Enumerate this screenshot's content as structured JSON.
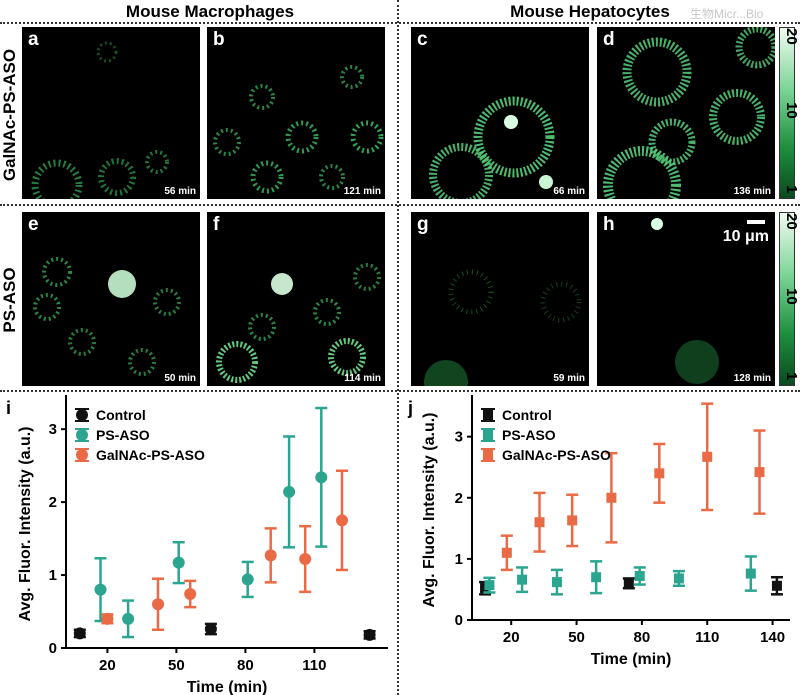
{
  "headers": {
    "left": "Mouse Macrophages",
    "right": "Mouse Hepatocytes"
  },
  "watermark": "生物Micr...Bio",
  "rows": {
    "top": "GalNAc-PS-ASO",
    "bottom": "PS-ASO"
  },
  "panels": [
    {
      "letter": "a",
      "time": "56 min"
    },
    {
      "letter": "b",
      "time": "121 min"
    },
    {
      "letter": "c",
      "time": "66 min"
    },
    {
      "letter": "d",
      "time": "136 min"
    },
    {
      "letter": "e",
      "time": "50 min"
    },
    {
      "letter": "f",
      "time": "114 min"
    },
    {
      "letter": "g",
      "time": "59 min"
    },
    {
      "letter": "h",
      "time": "128 min"
    }
  ],
  "colorbar": {
    "max": "20",
    "mid": "10",
    "min": "1"
  },
  "scalebar": "10 μm",
  "colors": {
    "control": "#111111",
    "ps_aso": "#2ba58f",
    "galnac": "#ea6a45",
    "cell_green": "#3fbf62"
  },
  "chart_data": [
    {
      "panel": "i",
      "type": "scatter",
      "xlabel": "Time (min)",
      "ylabel": "Avg. Fluor. Intensity (a.u.)",
      "xticks": [
        20,
        50,
        80,
        110
      ],
      "yticks": [
        0,
        1,
        2,
        3
      ],
      "xlim": [
        2,
        142
      ],
      "ylim": [
        0,
        3.4
      ],
      "marker": "circle",
      "series": [
        {
          "name": "Control",
          "points": [
            {
              "x": 8,
              "y": 0.2,
              "err": 0.05
            },
            {
              "x": 65,
              "y": 0.26,
              "err": 0.07
            },
            {
              "x": 134,
              "y": 0.18,
              "err": 0.05
            }
          ]
        },
        {
          "name": "PS-ASO",
          "points": [
            {
              "x": 17,
              "y": 0.8,
              "err": 0.43
            },
            {
              "x": 29,
              "y": 0.4,
              "err": 0.25
            },
            {
              "x": 51,
              "y": 1.17,
              "err": 0.28
            },
            {
              "x": 81,
              "y": 0.94,
              "err": 0.24
            },
            {
              "x": 99,
              "y": 2.14,
              "err": 0.76
            },
            {
              "x": 113,
              "y": 2.34,
              "err": 0.95
            }
          ]
        },
        {
          "name": "GalNAc-PS-ASO",
          "points": [
            {
              "x": 20,
              "y": 0.4,
              "err": 0.06
            },
            {
              "x": 42,
              "y": 0.6,
              "err": 0.35
            },
            {
              "x": 56,
              "y": 0.74,
              "err": 0.18
            },
            {
              "x": 91,
              "y": 1.27,
              "err": 0.37
            },
            {
              "x": 106,
              "y": 1.22,
              "err": 0.45
            },
            {
              "x": 122,
              "y": 1.75,
              "err": 0.68
            }
          ]
        }
      ]
    },
    {
      "panel": "j",
      "type": "scatter",
      "xlabel": "Time (min)",
      "ylabel": "Avg. Fluor. Intensity (a.u.)",
      "xticks": [
        20,
        50,
        80,
        110,
        140
      ],
      "yticks": [
        0,
        1,
        2,
        3
      ],
      "xlim": [
        2,
        148
      ],
      "ylim": [
        0,
        3.6
      ],
      "marker": "square",
      "series": [
        {
          "name": "Control",
          "points": [
            {
              "x": 8,
              "y": 0.52,
              "err": 0.1
            },
            {
              "x": 74,
              "y": 0.6,
              "err": 0.08
            },
            {
              "x": 142,
              "y": 0.56,
              "err": 0.14
            }
          ]
        },
        {
          "name": "PS-ASO",
          "points": [
            {
              "x": 10,
              "y": 0.57,
              "err": 0.12
            },
            {
              "x": 25,
              "y": 0.66,
              "err": 0.2
            },
            {
              "x": 41,
              "y": 0.62,
              "err": 0.2
            },
            {
              "x": 59,
              "y": 0.7,
              "err": 0.26
            },
            {
              "x": 79,
              "y": 0.72,
              "err": 0.14
            },
            {
              "x": 97,
              "y": 0.68,
              "err": 0.12
            },
            {
              "x": 130,
              "y": 0.76,
              "err": 0.28
            }
          ]
        },
        {
          "name": "GalNAc-PS-ASO",
          "points": [
            {
              "x": 18,
              "y": 1.1,
              "err": 0.28
            },
            {
              "x": 33,
              "y": 1.6,
              "err": 0.48
            },
            {
              "x": 48,
              "y": 1.63,
              "err": 0.42
            },
            {
              "x": 66,
              "y": 2.0,
              "err": 0.73
            },
            {
              "x": 88,
              "y": 2.4,
              "err": 0.48
            },
            {
              "x": 110,
              "y": 2.67,
              "err": 0.87
            },
            {
              "x": 134,
              "y": 2.42,
              "err": 0.68
            }
          ]
        }
      ]
    }
  ]
}
